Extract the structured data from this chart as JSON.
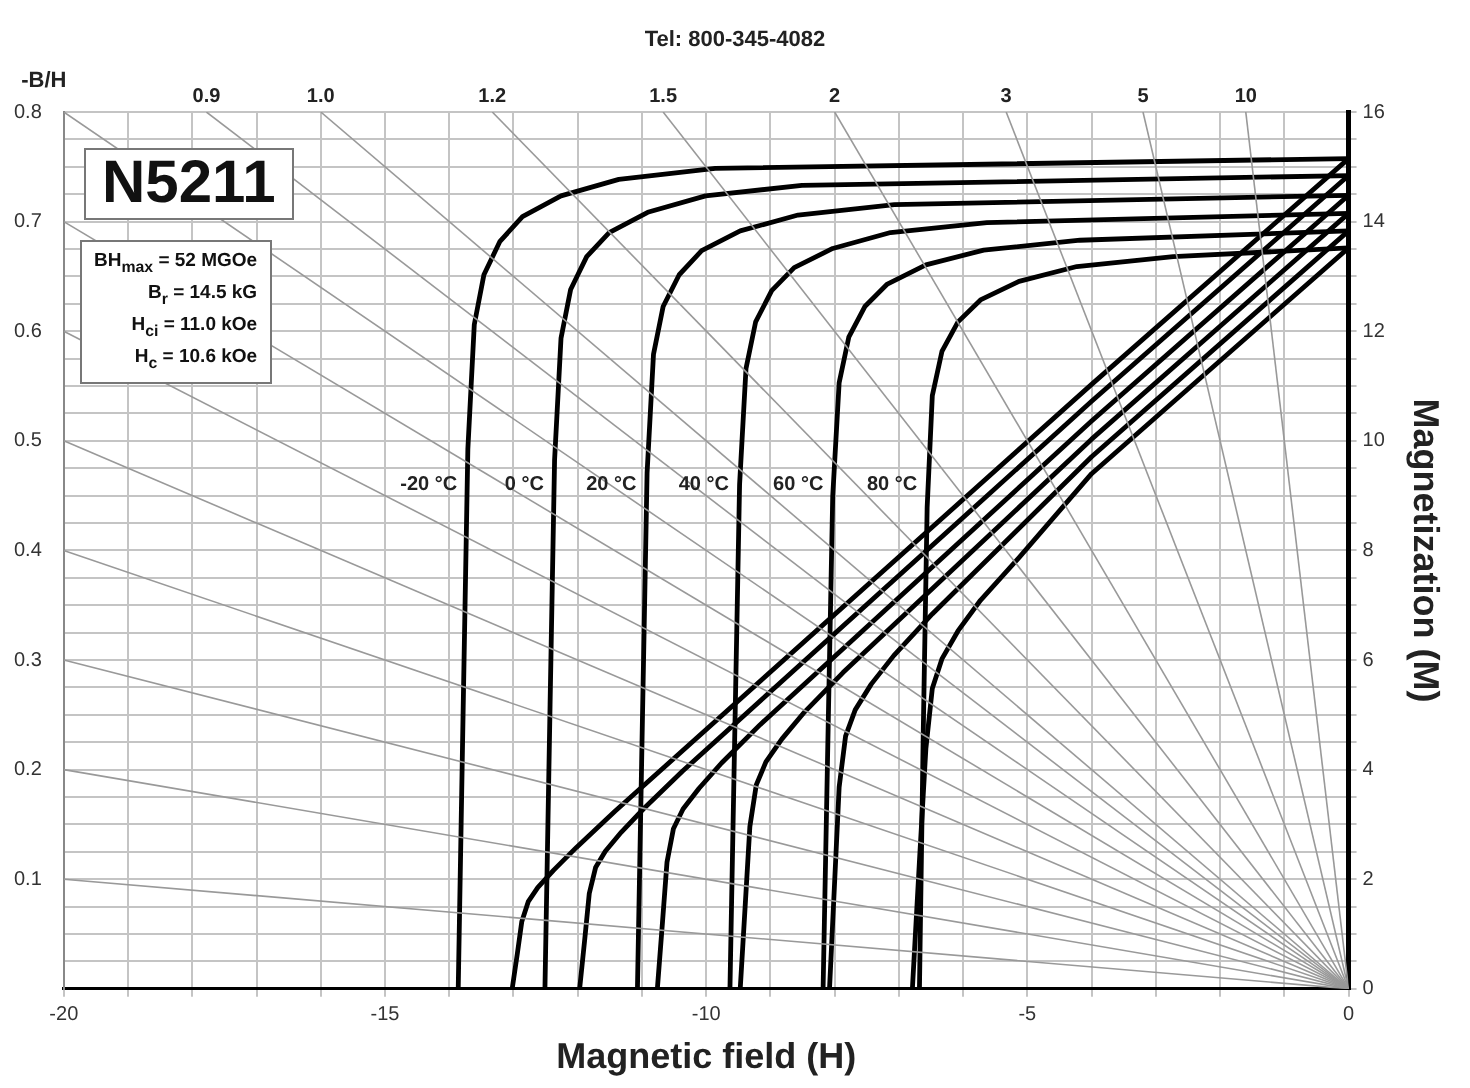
{
  "chart_data": {
    "type": "line",
    "title": "N5211",
    "subtitle": "Tel: 800-345-4082",
    "xlabel": "Magnetic field (H)",
    "ylabel": "-B/H",
    "y2label": "Magnetization (M)",
    "annotations": [
      "BH$_{max}$ = 52 MGOe",
      "B$_{r}$ = 14.5 kG",
      "H$_{ci}$ = 11.0 kOe",
      "H$_{c}$ = 10.6 kOe",
      {
        "text": "-20 °C",
        "x": -13.72,
        "y": 0.46
      },
      {
        "text": "0 °C",
        "x": -12.37,
        "y": 0.46
      },
      {
        "text": "20 °C",
        "x": -10.93,
        "y": 0.46
      },
      {
        "text": "40 °C",
        "x": -9.49,
        "y": 0.46
      },
      {
        "text": "60 °C",
        "x": -8.02,
        "y": 0.46
      },
      {
        "text": "80 °C",
        "x": -6.56,
        "y": 0.46
      },
      {
        "text": "0.9",
        "x": -17.78,
        "y": 0.8
      },
      {
        "text": "1.0",
        "x": -16,
        "y": 0.8
      },
      {
        "text": "1.2",
        "x": -13.33,
        "y": 0.8
      },
      {
        "text": "1.5",
        "x": -10.67,
        "y": 0.8
      },
      {
        "text": "2",
        "x": -8,
        "y": 0.8
      },
      {
        "text": "3",
        "x": -5.33,
        "y": 0.8
      },
      {
        "text": "5",
        "x": -3.2,
        "y": 0.8
      },
      {
        "text": "10",
        "x": -1.6,
        "y": 0.8
      }
    ],
    "xlim": [
      -20,
      0
    ],
    "xticks": [
      -20,
      {
        "value": -19,
        "label": null
      },
      {
        "value": -18,
        "label": null
      },
      {
        "value": -17,
        "label": null
      },
      {
        "value": -16,
        "label": null
      },
      -15,
      {
        "value": -14,
        "label": null
      },
      {
        "value": -13,
        "label": null
      },
      {
        "value": -12,
        "label": null
      },
      {
        "value": -11,
        "label": null
      },
      -10,
      {
        "value": -9,
        "label": null
      },
      {
        "value": -8,
        "label": null
      },
      {
        "value": -7,
        "label": null
      },
      {
        "value": -6,
        "label": null
      },
      -5,
      {
        "value": -4,
        "label": null
      },
      {
        "value": -3,
        "label": null
      },
      {
        "value": -2,
        "label": null
      },
      {
        "value": -1,
        "label": null
      },
      0
    ],
    "ylim": [
      0,
      0.8
    ],
    "yticks": [
      0.1,
      0.2,
      0.3,
      0.4,
      0.5,
      0.6,
      0.7,
      0.8
    ],
    "y2lim": [
      0,
      16
    ],
    "y2ticks": [
      0,
      {
        "value": 0.5,
        "label": null
      },
      {
        "value": 1,
        "label": null
      },
      {
        "value": 1.5,
        "label": null
      },
      2,
      {
        "value": 2.5,
        "label": null
      },
      {
        "value": 3,
        "label": null
      },
      {
        "value": 3.5,
        "label": null
      },
      4,
      {
        "value": 4.5,
        "label": null
      },
      {
        "value": 5,
        "label": null
      },
      {
        "value": 5.5,
        "label": null
      },
      6,
      {
        "value": 6.5,
        "label": null
      },
      {
        "value": 7,
        "label": null
      },
      {
        "value": 7.5,
        "label": null
      },
      8,
      {
        "value": 8.5,
        "label": null
      },
      {
        "value": 9,
        "label": null
      },
      {
        "value": 9.5,
        "label": null
      },
      10,
      {
        "value": 10.5,
        "label": null
      },
      {
        "value": 11,
        "label": null
      },
      {
        "value": 11.5,
        "label": null
      },
      12,
      {
        "value": 12.5,
        "label": null
      },
      {
        "value": 13,
        "label": null
      },
      {
        "value": 13.5,
        "label": null
      },
      14,
      {
        "value": 14.5,
        "label": null
      },
      {
        "value": 15,
        "label": null
      },
      {
        "value": 15.5,
        "label": null
      },
      16
    ],
    "grid": true,
    "legend": false,
    "marker": "none",
    "series": [
      {
        "color": "#999999",
        "x": [
          -20,
          0
        ],
        "values": [
          0.1,
          0
        ]
      },
      {
        "color": "#999999",
        "x": [
          -20,
          0
        ],
        "values": [
          0.2,
          0
        ]
      },
      {
        "color": "#999999",
        "x": [
          -20,
          0
        ],
        "values": [
          0.3,
          0
        ]
      },
      {
        "color": "#999999",
        "x": [
          -20,
          0
        ],
        "values": [
          0.4,
          0
        ]
      },
      {
        "color": "#999999",
        "x": [
          -20,
          0
        ],
        "values": [
          0.5,
          0
        ]
      },
      {
        "color": "#999999",
        "x": [
          -20,
          0
        ],
        "values": [
          0.6,
          0
        ]
      },
      {
        "color": "#999999",
        "x": [
          -20,
          0
        ],
        "values": [
          0.7,
          0
        ]
      },
      {
        "color": "#999999",
        "x": [
          -20,
          0
        ],
        "values": [
          0.8,
          0
        ]
      },
      {
        "color": "#999999",
        "x": [
          -17.78,
          0
        ],
        "values": [
          0.8,
          0
        ]
      },
      {
        "color": "#999999",
        "x": [
          -16,
          0
        ],
        "values": [
          0.8,
          0
        ]
      },
      {
        "color": "#999999",
        "x": [
          -13.33,
          0
        ],
        "values": [
          0.8,
          0
        ]
      },
      {
        "color": "#999999",
        "x": [
          -10.67,
          0
        ],
        "values": [
          0.8,
          0
        ]
      },
      {
        "color": "#999999",
        "x": [
          -8,
          0
        ],
        "values": [
          0.8,
          0
        ]
      },
      {
        "color": "#999999",
        "x": [
          -5.33,
          0
        ],
        "values": [
          0.8,
          0
        ]
      },
      {
        "color": "#999999",
        "x": [
          -3.2,
          0
        ],
        "values": [
          0.8,
          0
        ]
      },
      {
        "color": "#999999",
        "x": [
          -1.6,
          0
        ],
        "values": [
          0.8,
          0
        ]
      },
      {
        "color": "#000000",
        "axis": "y2",
        "x": [
          -13.86,
          -13.78,
          -13.71,
          -13.61,
          -13.46,
          -13.21,
          -12.86,
          -12.26,
          -11.36,
          -9.86,
          0
        ],
        "values": [
          0,
          5.3,
          9.85,
          12.12,
          13.03,
          13.64,
          14.09,
          14.47,
          14.77,
          14.97,
          15.15
        ]
      },
      {
        "color": "#000000",
        "axis": "y2",
        "x": [
          -12.51,
          -12.43,
          -12.36,
          -12.26,
          -12.11,
          -11.86,
          -11.51,
          -10.91,
          -10.01,
          -8.51,
          0
        ],
        "values": [
          0,
          5.19,
          9.65,
          11.87,
          12.76,
          13.36,
          13.8,
          14.17,
          14.47,
          14.66,
          14.84
        ]
      },
      {
        "color": "#000000",
        "axis": "y2",
        "x": [
          -11.07,
          -10.99,
          -10.92,
          -10.82,
          -10.67,
          -10.42,
          -10.07,
          -9.47,
          -8.57,
          -7.07,
          0
        ],
        "values": [
          0,
          5.07,
          9.41,
          11.58,
          12.45,
          13.03,
          13.47,
          13.83,
          14.12,
          14.31,
          14.48
        ]
      },
      {
        "color": "#000000",
        "axis": "y2",
        "x": [
          -9.63,
          -9.55,
          -9.48,
          -9.38,
          -9.23,
          -8.98,
          -8.63,
          -8.03,
          -7.13,
          -5.63,
          0
        ],
        "values": [
          0,
          4.95,
          9.2,
          11.32,
          12.17,
          12.74,
          13.16,
          13.51,
          13.8,
          13.98,
          14.15
        ]
      },
      {
        "color": "#000000",
        "axis": "y2",
        "x": [
          -8.18,
          -8.1,
          -8.03,
          -7.93,
          -7.78,
          -7.53,
          -7.18,
          -6.58,
          -5.68,
          -4.18,
          0
        ],
        "values": [
          0,
          4.84,
          8.99,
          11.06,
          11.89,
          12.45,
          12.86,
          13.21,
          13.48,
          13.66,
          13.83
        ]
      },
      {
        "color": "#000000",
        "axis": "y2",
        "x": [
          -6.68,
          -6.62,
          -6.56,
          -6.48,
          -6.33,
          -6.08,
          -5.73,
          -5.13,
          -4.23,
          -2.73,
          0
        ],
        "values": [
          0,
          4.73,
          8.79,
          10.82,
          11.63,
          12.17,
          12.57,
          12.91,
          13.18,
          13.36,
          13.52
        ]
      },
      {
        "color": "#000000",
        "axis": "y2",
        "x": [
          -13.02,
          -12.94,
          -12.87,
          -12.77,
          -12.62,
          -12.37,
          -12.02,
          -11.42,
          -4,
          0
        ],
        "values": [
          0,
          0.64,
          1.23,
          1.59,
          1.85,
          2.17,
          2.58,
          3.24,
          11.03,
          15.15
        ]
      },
      {
        "color": "#000000",
        "axis": "y2",
        "x": [
          -11.97,
          -11.89,
          -11.82,
          -11.72,
          -11.57,
          -11.32,
          -10.97,
          -10.37,
          -4,
          0
        ],
        "values": [
          0,
          0.91,
          1.74,
          2.22,
          2.51,
          2.86,
          3.29,
          3.97,
          10.72,
          14.84
        ]
      },
      {
        "color": "#000000",
        "axis": "y2",
        "x": [
          -10.76,
          -10.68,
          -10.61,
          -10.51,
          -10.36,
          -10.11,
          -9.76,
          -9.16,
          -4,
          0
        ],
        "values": [
          0,
          1.22,
          2.31,
          2.92,
          3.28,
          3.66,
          4.12,
          4.82,
          10.36,
          14.48
        ]
      },
      {
        "color": "#000000",
        "axis": "y2",
        "x": [
          -9.47,
          -9.39,
          -9.32,
          -9.22,
          -9.07,
          -8.82,
          -8.47,
          -7.87,
          -4,
          0
        ],
        "values": [
          0,
          1.57,
          2.96,
          3.72,
          4.14,
          4.56,
          5.05,
          5.77,
          10.03,
          14.15
        ]
      },
      {
        "color": "#000000",
        "axis": "y2",
        "x": [
          -8.08,
          -8.0,
          -7.93,
          -7.83,
          -7.68,
          -7.43,
          -7.08,
          -6.48,
          -4,
          0
        ],
        "values": [
          0,
          1.96,
          3.68,
          4.61,
          5.09,
          5.56,
          6.08,
          6.84,
          9.71,
          13.83
        ]
      },
      {
        "color": "#000000",
        "axis": "y2",
        "x": [
          -6.79,
          -6.68,
          -6.58,
          -6.48,
          -6.33,
          -6.08,
          -5.73,
          -5.13,
          -4,
          0
        ],
        "values": [
          0,
          2.33,
          4.38,
          5.48,
          6.02,
          6.53,
          7.09,
          7.87,
          9.4,
          13.52
        ]
      }
    ]
  }
}
